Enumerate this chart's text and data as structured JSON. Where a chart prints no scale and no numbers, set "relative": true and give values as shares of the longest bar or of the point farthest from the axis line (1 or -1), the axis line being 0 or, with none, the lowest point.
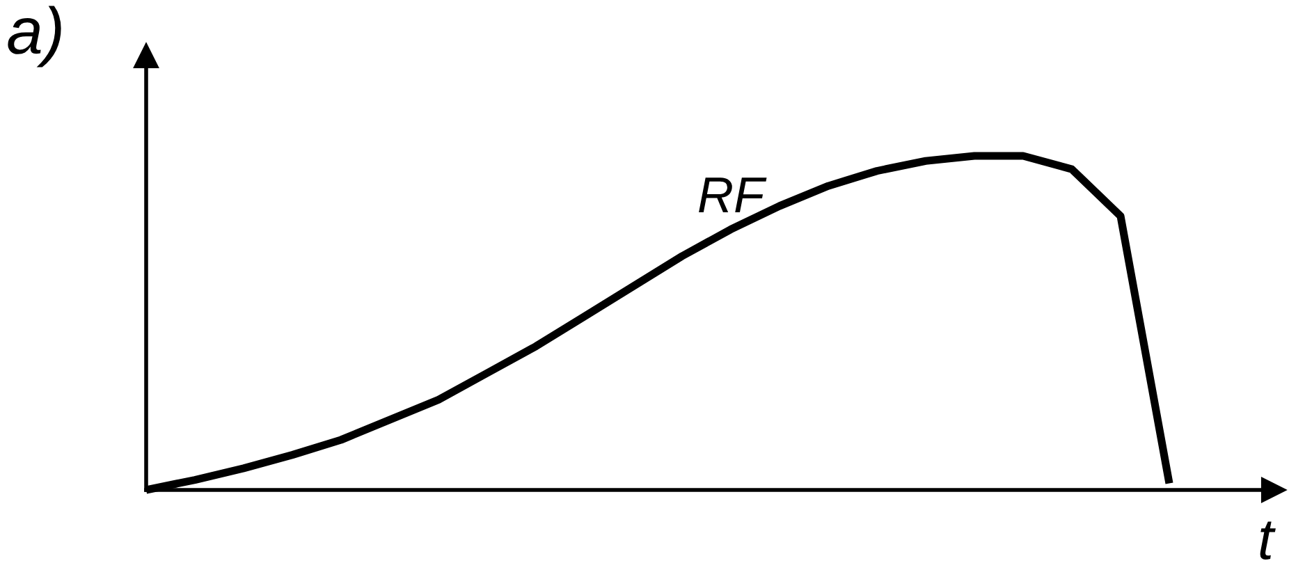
{
  "chart_data": {
    "type": "line",
    "relative": true,
    "xlabel": "t",
    "annotations": [
      "a)"
    ],
    "marker": "none",
    "line_style": "solid",
    "categories": [
      null,
      null,
      null,
      null,
      null,
      null,
      null,
      null,
      null,
      null,
      null,
      null,
      null,
      null,
      null,
      null,
      null,
      null,
      null,
      null,
      null,
      null
    ],
    "series": [
      {
        "name": "RF",
        "color": "#000000",
        "values": [
          0,
          0.03,
          0.065,
          0.105,
          0.15,
          0.21,
          0.27,
          0.35,
          0.43,
          0.52,
          0.61,
          0.7,
          0.78,
          0.85,
          0.91,
          0.955,
          0.985,
          1.0,
          1.0,
          0.96,
          0.82,
          0.02
        ]
      }
    ]
  }
}
